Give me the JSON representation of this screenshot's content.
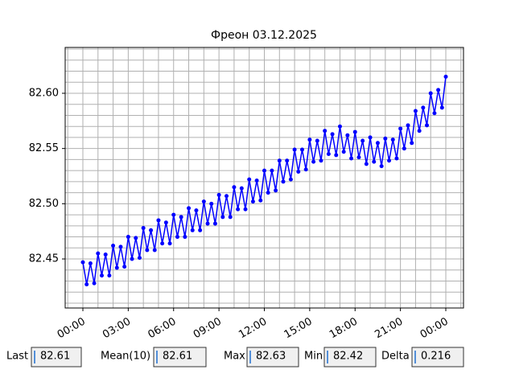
{
  "chart_data": {
    "type": "line",
    "title": "Фреон 03.12.2025",
    "x": [
      0,
      0.25,
      0.5,
      0.75,
      1,
      1.25,
      1.5,
      1.75,
      2,
      2.25,
      2.5,
      2.75,
      3,
      3.25,
      3.5,
      3.75,
      4,
      4.25,
      4.5,
      4.75,
      5,
      5.25,
      5.5,
      5.75,
      6,
      6.25,
      6.5,
      6.75,
      7,
      7.25,
      7.5,
      7.75,
      8,
      8.25,
      8.5,
      8.75,
      9,
      9.25,
      9.5,
      9.75,
      10,
      10.25,
      10.5,
      10.75,
      11,
      11.25,
      11.5,
      11.75,
      12,
      12.25,
      12.5,
      12.75,
      13,
      13.25,
      13.5,
      13.75,
      14,
      14.25,
      14.5,
      14.75,
      15,
      15.25,
      15.5,
      15.75,
      16,
      16.25,
      16.5,
      16.75,
      17,
      17.25,
      17.5,
      17.75,
      18,
      18.25,
      18.5,
      18.75,
      19,
      19.25,
      19.5,
      19.75,
      20,
      20.25,
      20.5,
      20.75,
      21,
      21.25,
      21.5,
      21.75,
      22,
      22.25,
      22.5,
      22.75,
      23,
      23.25,
      23.5,
      23.75,
      24
    ],
    "series": [
      {
        "color": "#0000ff",
        "values": [
          82.447,
          82.427,
          82.446,
          82.428,
          82.455,
          82.435,
          82.454,
          82.435,
          82.462,
          82.442,
          82.461,
          82.443,
          82.47,
          82.45,
          82.469,
          82.451,
          82.478,
          82.458,
          82.476,
          82.458,
          82.485,
          82.464,
          82.483,
          82.464,
          82.49,
          82.47,
          82.488,
          82.47,
          82.496,
          82.476,
          82.494,
          82.476,
          82.502,
          82.482,
          82.5,
          82.482,
          82.508,
          82.488,
          82.507,
          82.488,
          82.515,
          82.495,
          82.514,
          82.495,
          82.522,
          82.502,
          82.521,
          82.503,
          82.53,
          82.51,
          82.53,
          82.512,
          82.539,
          82.52,
          82.539,
          82.522,
          82.549,
          82.529,
          82.549,
          82.531,
          82.558,
          82.538,
          82.557,
          82.539,
          82.566,
          82.545,
          82.563,
          82.544,
          82.57,
          82.547,
          82.562,
          82.541,
          82.565,
          82.542,
          82.557,
          82.536,
          82.56,
          82.538,
          82.555,
          82.534,
          82.559,
          82.539,
          82.558,
          82.541,
          82.568,
          82.55,
          82.571,
          82.555,
          82.584,
          82.566,
          82.587,
          82.571,
          82.6,
          82.582,
          82.603,
          82.587,
          82.615
        ]
      }
    ],
    "xlim": [
      -1.17,
      25.17
    ],
    "ylim": [
      82.4056,
      82.6415
    ],
    "xticks": [
      {
        "value": 0,
        "label": "00:00"
      },
      {
        "value": 3,
        "label": "03:00"
      },
      {
        "value": 6,
        "label": "06:00"
      },
      {
        "value": 9,
        "label": "09:00"
      },
      {
        "value": 12,
        "label": "12:00"
      },
      {
        "value": 15,
        "label": "15:00"
      },
      {
        "value": 18,
        "label": "18:00"
      },
      {
        "value": 21,
        "label": "21:00"
      },
      {
        "value": 24,
        "label": "00:00"
      }
    ],
    "yticks": [
      {
        "value": 82.45,
        "label": "82.45"
      },
      {
        "value": 82.5,
        "label": "82.50"
      },
      {
        "value": 82.55,
        "label": "82.55"
      },
      {
        "value": 82.6,
        "label": "82.60"
      }
    ],
    "xgrid": [
      -1,
      0,
      1,
      2,
      3,
      4,
      5,
      6,
      7,
      8,
      9,
      10,
      11,
      12,
      13,
      14,
      15,
      16,
      17,
      18,
      19,
      20,
      21,
      22,
      23,
      24,
      25
    ],
    "ygrid": [
      82.41,
      82.42,
      82.43,
      82.44,
      82.45,
      82.46,
      82.47,
      82.48,
      82.49,
      82.5,
      82.51,
      82.52,
      82.53,
      82.54,
      82.55,
      82.56,
      82.57,
      82.58,
      82.59,
      82.6,
      82.61,
      82.62,
      82.63,
      82.64
    ],
    "grid": true
  },
  "stats": [
    {
      "label": "Last",
      "value": "82.61"
    },
    {
      "label": "Mean(10)",
      "value": "82.61"
    },
    {
      "label": "Max",
      "value": "82.63"
    },
    {
      "label": "Min",
      "value": "82.42"
    },
    {
      "label": "Delta",
      "value": "0.216"
    }
  ]
}
